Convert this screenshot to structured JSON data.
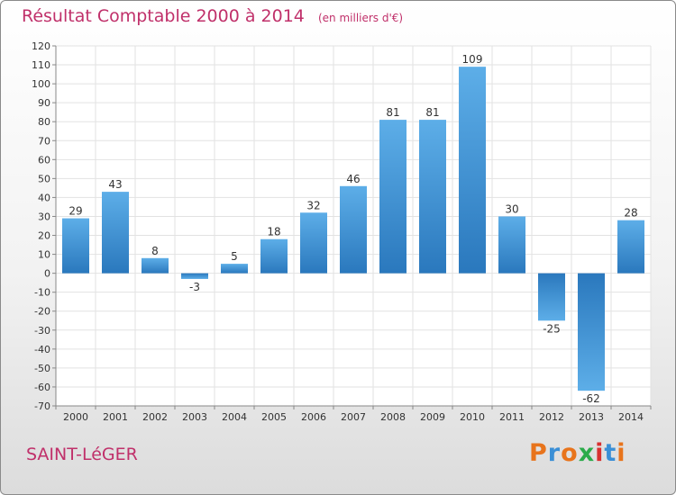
{
  "header": {
    "title": "Résultat Comptable 2000 à 2014",
    "subtitle": "(en milliers d'€)"
  },
  "footer": {
    "commune": "SAINT-LéGER",
    "logo_text": "Proxiti",
    "logo_colors": [
      "#e8741c",
      "#3a8fd6",
      "#e8741c",
      "#2bab4a",
      "#d83030",
      "#3a8fd6",
      "#e8741c"
    ]
  },
  "colors": {
    "title": "#c0306a",
    "bar_top": "#5daee8",
    "bar_bottom": "#2a78bd",
    "grid": "#e2e2e2",
    "text": "#333333"
  },
  "chart_data": {
    "type": "bar",
    "title": "Résultat Comptable 2000 à 2014",
    "subtitle": "(en milliers d'€)",
    "xlabel": "",
    "ylabel": "",
    "categories": [
      "2000",
      "2001",
      "2002",
      "2003",
      "2004",
      "2005",
      "2006",
      "2007",
      "2008",
      "2009",
      "2010",
      "2011",
      "2012",
      "2013",
      "2014"
    ],
    "values": [
      29,
      43,
      8,
      -3,
      5,
      18,
      32,
      46,
      81,
      81,
      109,
      30,
      -25,
      -62,
      28
    ],
    "data_labels": [
      "29",
      "43",
      "8",
      "-3",
      "5",
      "18",
      "32",
      "46",
      "81",
      "81",
      "109",
      "30",
      "-25",
      "-62",
      "28"
    ],
    "ylim": [
      -70,
      120
    ],
    "ytick_step": 10,
    "grid": true,
    "legend": "none"
  }
}
